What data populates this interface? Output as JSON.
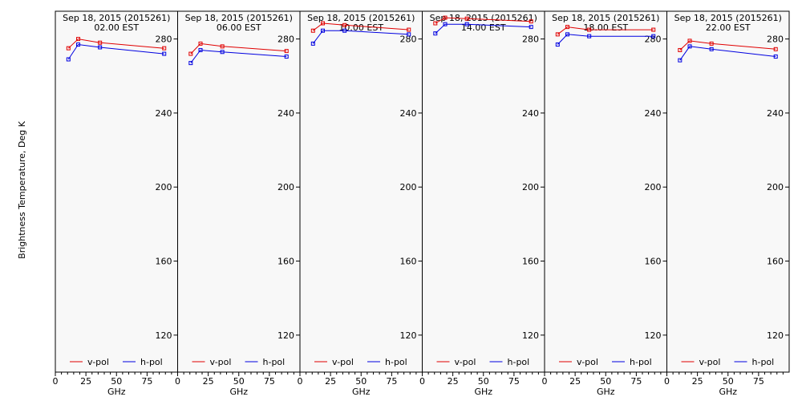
{
  "figure": {
    "ylabel": "Brightness Temperature, Deg K",
    "xlabel": "GHz"
  },
  "legend": {
    "v_label": "v-pol",
    "h_label": "h-pol"
  },
  "colors": {
    "v_pol": "#e00000",
    "h_pol": "#0000e0",
    "axes": "#000000",
    "panel_background": "#f8f8f8"
  },
  "chart_data": [
    {
      "type": "line",
      "title": "Sep 18, 2015 (2015261)",
      "subtitle": "02.00 EST",
      "xlabel": "GHz",
      "ylabel": "Brightness Temperature, Deg K",
      "xlim": [
        0,
        100
      ],
      "ylim": [
        100,
        295
      ],
      "x_ticks": [
        0,
        25,
        50,
        75
      ],
      "y_ticks": [
        120,
        160,
        200,
        240,
        280
      ],
      "legend_position": "bottom",
      "series": [
        {
          "name": "v-pol",
          "x": [
            10.7,
            18.7,
            36.5,
            89.0
          ],
          "values": [
            275,
            280,
            278,
            275
          ]
        },
        {
          "name": "h-pol",
          "x": [
            10.7,
            18.7,
            36.5,
            89.0
          ],
          "values": [
            269,
            277,
            275.5,
            272
          ]
        }
      ]
    },
    {
      "type": "line",
      "title": "Sep 18, 2015 (2015261)",
      "subtitle": "06.00 EST",
      "xlabel": "GHz",
      "ylabel": "Brightness Temperature, Deg K",
      "xlim": [
        0,
        100
      ],
      "ylim": [
        100,
        295
      ],
      "x_ticks": [
        0,
        25,
        50,
        75
      ],
      "y_ticks": [
        120,
        160,
        200,
        240,
        280
      ],
      "legend_position": "bottom",
      "series": [
        {
          "name": "v-pol",
          "x": [
            10.7,
            18.7,
            36.5,
            89.0
          ],
          "values": [
            272,
            277.5,
            276,
            273.5
          ]
        },
        {
          "name": "h-pol",
          "x": [
            10.7,
            18.7,
            36.5,
            89.0
          ],
          "values": [
            267,
            274,
            273,
            270.5
          ]
        }
      ]
    },
    {
      "type": "line",
      "title": "Sep 18, 2015 (2015261)",
      "subtitle": "10.00 EST",
      "xlabel": "GHz",
      "ylabel": "Brightness Temperature, Deg K",
      "xlim": [
        0,
        100
      ],
      "ylim": [
        100,
        295
      ],
      "x_ticks": [
        0,
        25,
        50,
        75
      ],
      "y_ticks": [
        120,
        160,
        200,
        240,
        280
      ],
      "legend_position": "bottom",
      "series": [
        {
          "name": "v-pol",
          "x": [
            10.7,
            18.7,
            36.5,
            89.0
          ],
          "values": [
            284.5,
            288.5,
            287.5,
            285
          ]
        },
        {
          "name": "h-pol",
          "x": [
            10.7,
            18.7,
            36.5,
            89.0
          ],
          "values": [
            277.5,
            284.5,
            284.5,
            282.5
          ]
        }
      ]
    },
    {
      "type": "line",
      "title": "Sep 18, 2015 (2015261)",
      "subtitle": "14.00 EST",
      "xlabel": "GHz",
      "ylabel": "Brightness Temperature, Deg K",
      "xlim": [
        0,
        100
      ],
      "ylim": [
        100,
        295
      ],
      "x_ticks": [
        0,
        25,
        50,
        75
      ],
      "y_ticks": [
        120,
        160,
        200,
        240,
        280
      ],
      "legend_position": "bottom",
      "series": [
        {
          "name": "v-pol",
          "x": [
            10.7,
            18.7,
            36.5,
            89.0
          ],
          "values": [
            288.5,
            291.5,
            291,
            289.5
          ]
        },
        {
          "name": "h-pol",
          "x": [
            10.7,
            18.7,
            36.5,
            89.0
          ],
          "values": [
            283,
            288,
            288,
            286.5
          ]
        }
      ]
    },
    {
      "type": "line",
      "title": "Sep 18, 2015 (2015261)",
      "subtitle": "18.00 EST",
      "xlabel": "GHz",
      "ylabel": "Brightness Temperature, Deg K",
      "xlim": [
        0,
        100
      ],
      "ylim": [
        100,
        295
      ],
      "x_ticks": [
        0,
        25,
        50,
        75
      ],
      "y_ticks": [
        120,
        160,
        200,
        240,
        280
      ],
      "legend_position": "bottom",
      "series": [
        {
          "name": "v-pol",
          "x": [
            10.7,
            18.7,
            36.5,
            89.0
          ],
          "values": [
            282.5,
            286.5,
            285,
            285
          ]
        },
        {
          "name": "h-pol",
          "x": [
            10.7,
            18.7,
            36.5,
            89.0
          ],
          "values": [
            277,
            282.5,
            281.5,
            281.5
          ]
        }
      ]
    },
    {
      "type": "line",
      "title": "Sep 18, 2015 (2015261)",
      "subtitle": "22.00 EST",
      "xlabel": "GHz",
      "ylabel": "Brightness Temperature, Deg K",
      "xlim": [
        0,
        100
      ],
      "ylim": [
        100,
        295
      ],
      "x_ticks": [
        0,
        25,
        50,
        75
      ],
      "y_ticks": [
        120,
        160,
        200,
        240,
        280
      ],
      "legend_position": "bottom",
      "series": [
        {
          "name": "v-pol",
          "x": [
            10.7,
            18.7,
            36.5,
            89.0
          ],
          "values": [
            274,
            279,
            277.5,
            274.5
          ]
        },
        {
          "name": "h-pol",
          "x": [
            10.7,
            18.7,
            36.5,
            89.0
          ],
          "values": [
            268.5,
            276,
            274.5,
            270.5
          ]
        }
      ]
    }
  ]
}
